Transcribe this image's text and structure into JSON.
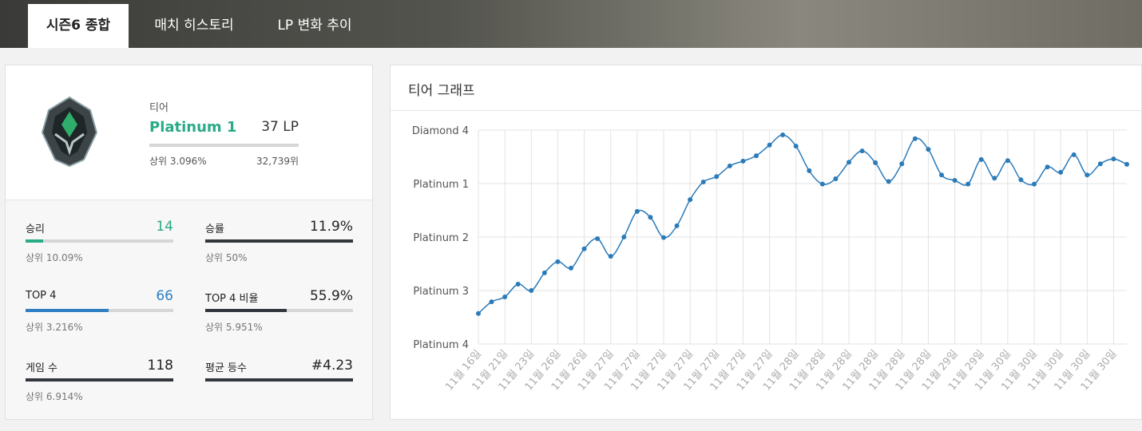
{
  "tabs": [
    "시즌6 종합",
    "매치 히스토리",
    "LP 변화 추이"
  ],
  "profile": {
    "label": "티어",
    "tier": "Platinum 1",
    "lp": "37 LP",
    "rank_percent": "상위 3.096%",
    "rank": "32,739위"
  },
  "stats": [
    {
      "label": "승리",
      "value": "14",
      "rank": "상위 10.09%"
    },
    {
      "label": "승률",
      "value": "11.9%",
      "rank": "상위 50%"
    },
    {
      "label": "TOP 4",
      "value": "66",
      "rank": "상위 3.216%"
    },
    {
      "label": "TOP 4 비율",
      "value": "55.9%",
      "rank": "상위 5.951%"
    },
    {
      "label": "게임 수",
      "value": "118",
      "rank": "상위 6.914%"
    },
    {
      "label": "평균 등수",
      "value": "#4.23",
      "rank": ""
    }
  ],
  "chart_data": {
    "type": "line",
    "title": "티어 그래프",
    "categories": [
      "11월 16일",
      null,
      "11월 21일",
      null,
      "11월 23일",
      null,
      "11월 26일",
      null,
      "11월 26일",
      null,
      "11월 27일",
      null,
      "11월 27일",
      null,
      "11월 27일",
      null,
      "11월 27일",
      null,
      "11월 27일",
      null,
      "11월 27일",
      null,
      "11월 27일",
      null,
      "11월 28일",
      null,
      "11월 28일",
      null,
      "11월 28일",
      null,
      "11월 28일",
      null,
      "11월 28일",
      null,
      "11월 28일",
      null,
      "11월 29일",
      null,
      "11월 29일",
      null,
      "11월 30일",
      null,
      "11월 30일",
      null,
      "11월 30일",
      null,
      "11월 30일",
      null,
      "11월 30일",
      null
    ],
    "values": [
      0.57,
      0.79,
      0.88,
      1.12,
      1.0,
      1.33,
      1.54,
      1.42,
      1.78,
      1.97,
      1.64,
      2.0,
      2.48,
      2.37,
      1.99,
      2.21,
      2.7,
      3.03,
      3.13,
      3.33,
      3.42,
      3.52,
      3.72,
      3.91,
      3.7,
      3.24,
      2.99,
      3.09,
      3.4,
      3.61,
      3.39,
      3.04,
      3.37,
      3.84,
      3.64,
      3.16,
      3.06,
      2.99,
      3.45,
      3.1,
      3.43,
      3.07,
      2.99,
      3.31,
      3.21,
      3.54,
      3.16,
      3.37,
      3.46,
      3.36
    ],
    "color": "#2b7bb9",
    "ylim": [
      0,
      4
    ],
    "yticks": [
      {
        "value": 0,
        "label": "Platinum 4"
      },
      {
        "value": 1,
        "label": "Platinum 3"
      },
      {
        "value": 2,
        "label": "Platinum 2"
      },
      {
        "value": 3,
        "label": "Platinum 1"
      },
      {
        "value": 4,
        "label": "Diamond 4"
      }
    ],
    "grid": true
  }
}
